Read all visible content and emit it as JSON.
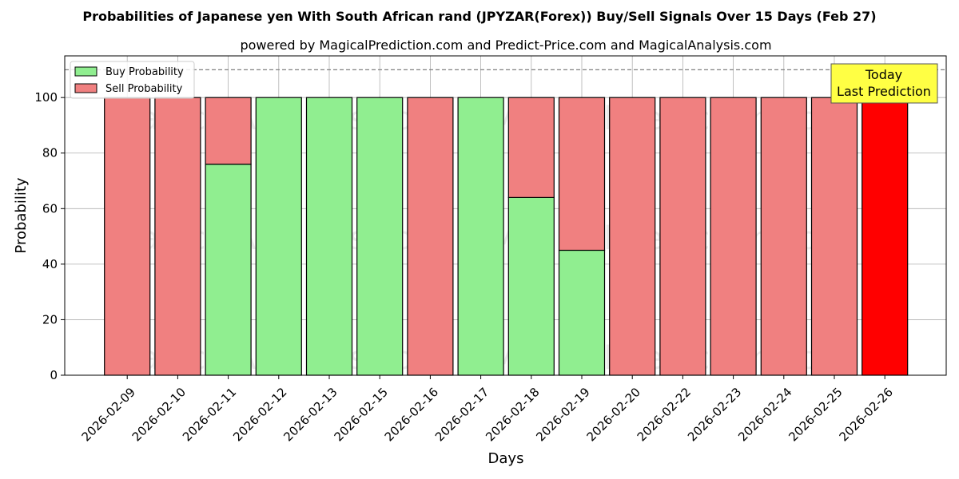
{
  "chart_data": {
    "type": "bar",
    "stacked": true,
    "title": "Probabilities of Japanese yen With South African rand (JPYZAR(Forex)) Buy/Sell Signals Over 15 Days (Feb 27)",
    "subtitle": "powered by MagicalPrediction.com and Predict-Price.com and MagicalAnalysis.com",
    "xlabel": "Days",
    "ylabel": "Probability",
    "ylim": [
      0,
      115
    ],
    "yticks": [
      0,
      20,
      40,
      60,
      80,
      100
    ],
    "grid": true,
    "legend_position": "top-left",
    "categories": [
      "2026-02-09",
      "2026-02-10",
      "2026-02-11",
      "2026-02-12",
      "2026-02-13",
      "2026-02-15",
      "2026-02-16",
      "2026-02-17",
      "2026-02-18",
      "2026-02-19",
      "2026-02-20",
      "2026-02-22",
      "2026-02-23",
      "2026-02-24",
      "2026-02-25",
      "2026-02-26"
    ],
    "series": [
      {
        "name": "Buy Probability",
        "color": "#90ee90",
        "values": [
          0,
          0,
          76,
          100,
          100,
          100,
          0,
          100,
          64,
          45,
          0,
          0,
          0,
          0,
          0,
          0
        ]
      },
      {
        "name": "Sell Probability",
        "color": "#f08080",
        "values": [
          100,
          100,
          24,
          0,
          0,
          0,
          100,
          0,
          36,
          55,
          100,
          100,
          100,
          100,
          100,
          100
        ]
      }
    ],
    "highlight": {
      "category": "2026-02-26",
      "color": "#ff0000"
    },
    "reference_line": {
      "y": 110,
      "style": "dashed"
    },
    "annotation": {
      "lines": [
        "Today",
        "Last Prediction"
      ],
      "background": "#ffff44"
    },
    "watermarks": [
      "MagicalAnalysis.com",
      "MagicalPrediction.com"
    ]
  }
}
